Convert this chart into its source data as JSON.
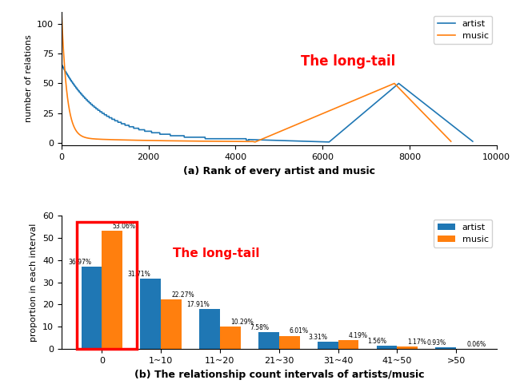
{
  "top_plot": {
    "artist_color": "#1f77b4",
    "music_color": "#ff7f0e",
    "ylabel": "number of relations",
    "xlabel": "(a) Rank of every artist and music",
    "xlim": [
      0,
      10000
    ],
    "ylim": [
      -2,
      110
    ],
    "yticks": [
      0,
      25,
      50,
      75,
      100
    ],
    "longtail_text": "The long-tail",
    "longtail_x": 5500,
    "longtail_y": 68,
    "longtail_color": "red",
    "longtail_fontsize": 12
  },
  "bottom_plot": {
    "categories": [
      "0",
      "1~10",
      "11~20",
      "21~30",
      "31~40",
      "41~50",
      ">50"
    ],
    "artist_values": [
      36.97,
      31.71,
      17.91,
      7.58,
      3.31,
      1.56,
      0.93
    ],
    "music_values": [
      53.06,
      22.27,
      10.29,
      6.01,
      4.19,
      1.17,
      0.06
    ],
    "artist_labels": [
      "36.97%",
      "31.71%",
      "17.91%",
      "7.58%",
      "3.31%",
      "1.56%",
      "0.93%"
    ],
    "music_labels": [
      "53.06%",
      "22.27%",
      "10.29%",
      "6.01%",
      "4.19%",
      "1.17%",
      "0.06%"
    ],
    "artist_color": "#1f77b4",
    "music_color": "#ff7f0e",
    "ylabel": "proportion in each interval",
    "xlabel": "(b) The relationship count intervals of artists/music",
    "ylim": [
      0,
      60
    ],
    "yticks": [
      0,
      10,
      20,
      30,
      40,
      50,
      60
    ],
    "longtail_text": "The long-tail",
    "longtail_x": 1.2,
    "longtail_y": 43,
    "longtail_color": "red",
    "longtail_fontsize": 11,
    "rect_color": "red",
    "bar_width": 0.35
  }
}
